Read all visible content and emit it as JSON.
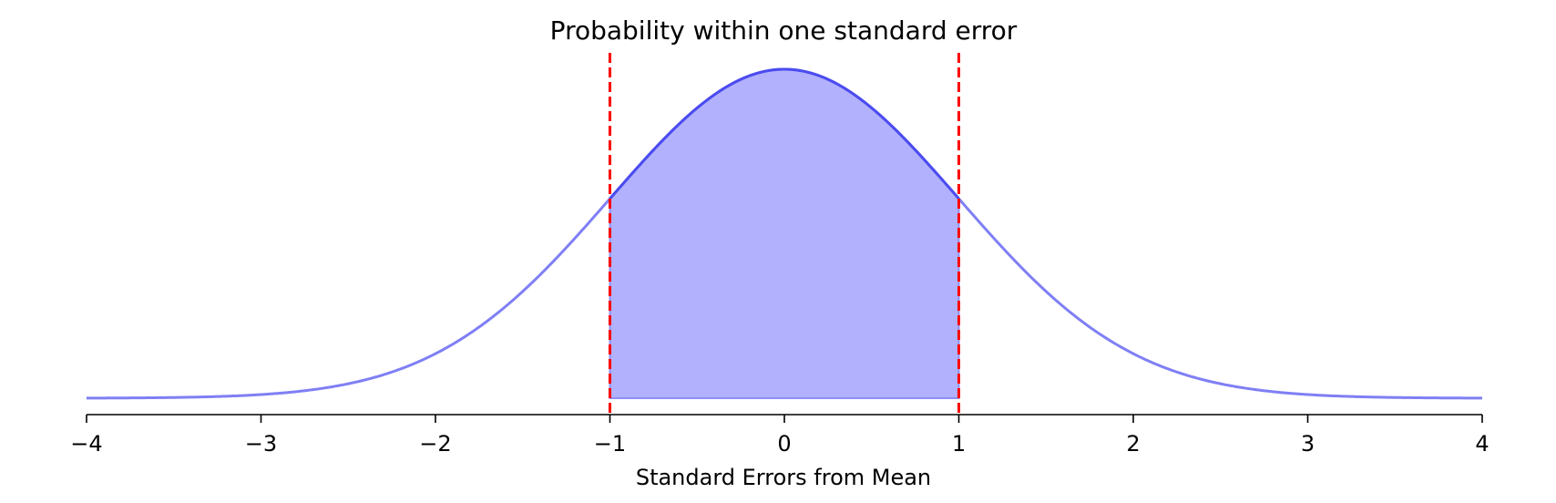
{
  "chart_data": {
    "type": "area",
    "title": "Probability within one standard error",
    "xlabel": "Standard Errors from Mean",
    "ylabel": "",
    "xlim": [
      -4,
      4
    ],
    "ylim": [
      0,
      0.4
    ],
    "xticks": [
      -4,
      -3,
      -2,
      -1,
      0,
      1,
      2,
      3,
      4
    ],
    "xtick_labels": [
      "−4",
      "−3",
      "−2",
      "−1",
      "0",
      "1",
      "2",
      "3",
      "4"
    ],
    "yaxis_visible": false,
    "grid": false,
    "legend": "none",
    "curve": {
      "distribution": "standard normal",
      "mean": 0,
      "sd": 1,
      "x_range": [
        -4,
        4
      ],
      "color": "#7f7ff5"
    },
    "shaded_region": {
      "x_from": -1,
      "x_to": 1,
      "color": "#b1b1fd",
      "edge_color": "#4b4bf0"
    },
    "reference_lines": [
      {
        "x": -1,
        "color": "#ff0000",
        "style": "dashed"
      },
      {
        "x": 1,
        "color": "#ff0000",
        "style": "dashed"
      }
    ]
  }
}
